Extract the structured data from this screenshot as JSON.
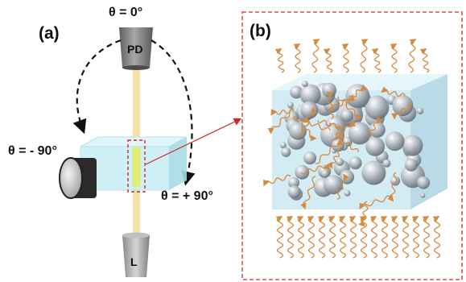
{
  "panel_a": {
    "label": "(a)",
    "angle_top": "θ = 0°",
    "angle_left": "θ = - 90°",
    "angle_right": "θ = + 90°",
    "detector_label": "PD",
    "source_label": "L"
  },
  "panel_b": {
    "label": "(b)"
  },
  "colors": {
    "beam": "#f5e2a6",
    "cuvette": "#c7eef6",
    "sample_highlight": "#dfee7a",
    "pointer": "#cc2a2a",
    "wave": "#d58a42",
    "particle": "#9aa4ad",
    "component": "#8c8c8c"
  }
}
